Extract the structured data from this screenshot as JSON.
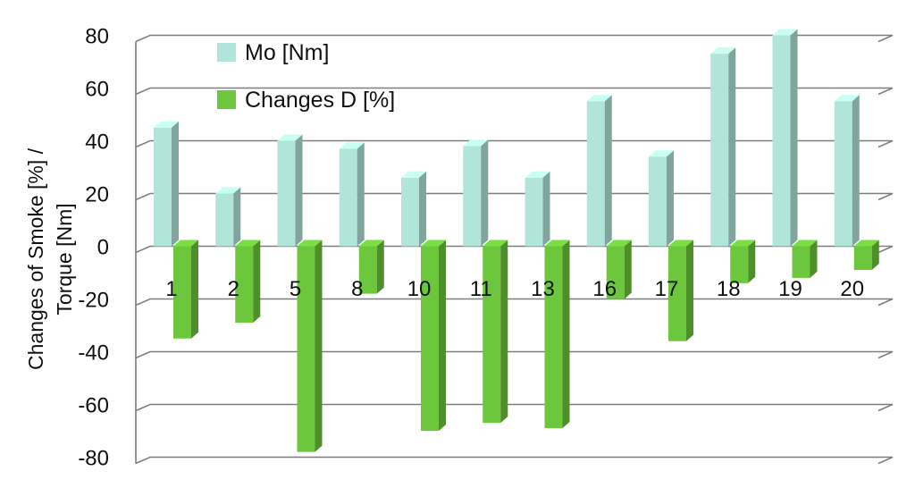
{
  "chart_data": {
    "type": "bar",
    "categories": [
      "1",
      "2",
      "5",
      "8",
      "10",
      "11",
      "13",
      "16",
      "17",
      "18",
      "19",
      "20"
    ],
    "series": [
      {
        "name": "Mo [Nm]",
        "color": "#b2e5d9",
        "values": [
          45,
          20,
          40,
          37,
          26,
          38,
          26,
          55,
          34,
          73,
          80,
          55
        ]
      },
      {
        "name": "Changes D [%]",
        "color": "#6cc73c",
        "values": [
          -35,
          -29,
          -78,
          -18,
          -70,
          -67,
          -69,
          -20,
          -36,
          -14,
          -12,
          -9
        ]
      }
    ],
    "ylim": [
      -80,
      80
    ],
    "yticks": [
      "80",
      "60",
      "40",
      "20",
      "0",
      "-20",
      "-40",
      "-60",
      "-80"
    ],
    "ylabel_lines": [
      "Changes of Smoke [%] /",
      "Torque  [Nm]"
    ],
    "xlabel": "",
    "title": "",
    "grid": true,
    "legend_position": "top-left",
    "style": "3d-bar"
  }
}
